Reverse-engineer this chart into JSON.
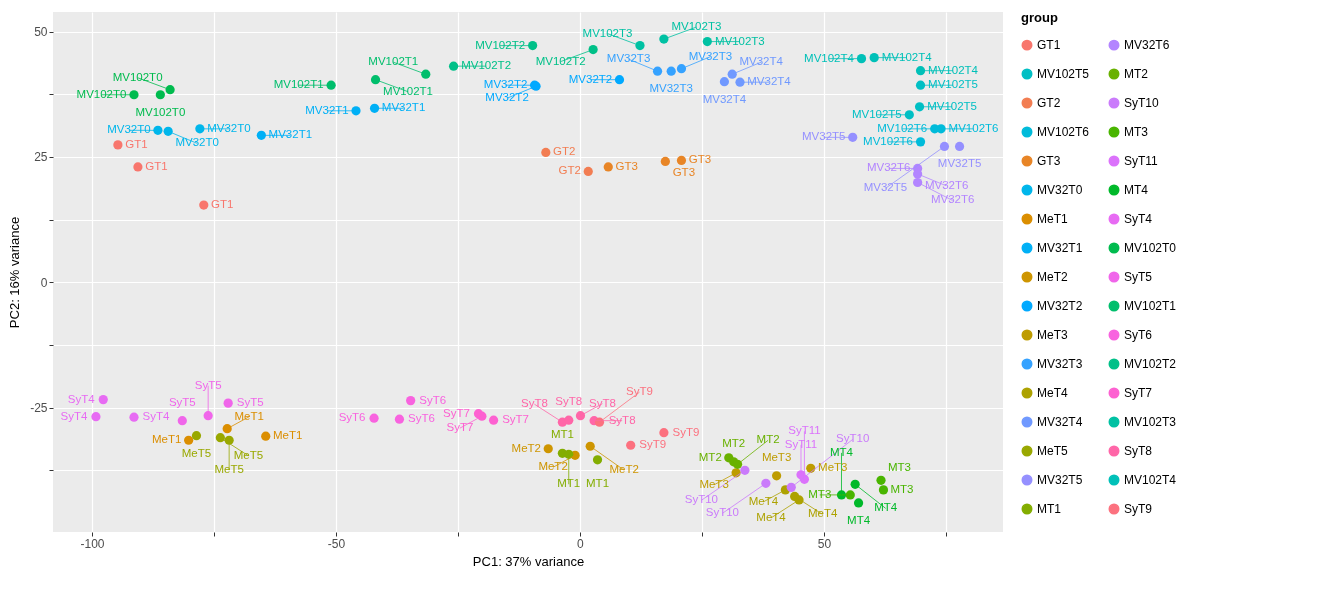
{
  "chart_data": {
    "type": "scatter",
    "xlabel": "PC1: 37% variance",
    "ylabel": "PC2: 16% variance",
    "legend_title": "group",
    "legend": "right",
    "grid": true,
    "marker": "circle",
    "xlim": [
      -108,
      86.7
    ],
    "ylim": [
      -49.8,
      53.9
    ],
    "xticks": [
      -100,
      {
        "value": -75,
        "label": null
      },
      -50,
      {
        "value": -25,
        "label": null
      },
      0,
      {
        "value": 25,
        "label": null
      },
      50,
      {
        "value": 75,
        "label": null
      }
    ],
    "yticks": [
      {
        "value": -37.5,
        "label": null
      },
      -25,
      {
        "value": -12.5,
        "label": null
      },
      0,
      {
        "value": 12.5,
        "label": null
      },
      25,
      {
        "value": 37.5,
        "label": null
      },
      50
    ],
    "series": [
      {
        "name": "GT1",
        "color": "#f8766d",
        "x": [
          -94.7,
          -90.6,
          -77.1
        ],
        "values": [
          27.4,
          23.0,
          15.4
        ]
      },
      {
        "name": "GT2",
        "color": "#f27d52",
        "x": [
          -7.0,
          1.7
        ],
        "values": [
          25.9,
          22.1
        ]
      },
      {
        "name": "GT3",
        "color": "#e88526",
        "x": [
          5.8,
          17.5,
          20.8
        ],
        "values": [
          23.0,
          24.1,
          24.3
        ]
      },
      {
        "name": "MeT1",
        "color": "#db8e00",
        "x": [
          -80.2,
          -72.3,
          -64.4
        ],
        "values": [
          -31.5,
          -29.2,
          -30.7
        ]
      },
      {
        "name": "MeT2",
        "color": "#ce9500",
        "x": [
          -6.5,
          2.1,
          -1.0
        ],
        "values": [
          -33.2,
          -32.7,
          -34.5
        ]
      },
      {
        "name": "MeT3",
        "color": "#be9c00",
        "x": [
          32.0,
          40.3,
          47.3
        ],
        "values": [
          -38.0,
          -38.6,
          -37.1
        ]
      },
      {
        "name": "MeT4",
        "color": "#ada200",
        "x": [
          42.1,
          44.0,
          44.9
        ],
        "values": [
          -41.4,
          -42.7,
          -43.4
        ]
      },
      {
        "name": "MeT5",
        "color": "#99a800",
        "x": [
          -78.6,
          -73.7,
          -71.9
        ],
        "values": [
          -30.6,
          -31.0,
          -31.5
        ]
      },
      {
        "name": "MT1",
        "color": "#83ad00",
        "x": [
          -3.6,
          -2.3,
          3.6
        ],
        "values": [
          -34.1,
          -34.3,
          -35.4
        ]
      },
      {
        "name": "MT2",
        "color": "#69b100",
        "x": [
          30.5,
          31.5,
          32.3
        ],
        "values": [
          -35.0,
          -35.8,
          -36.3
        ]
      },
      {
        "name": "MT3",
        "color": "#49b500",
        "x": [
          61.7,
          62.2,
          55.4
        ],
        "values": [
          -39.5,
          -41.4,
          -42.4
        ]
      },
      {
        "name": "MT4",
        "color": "#00b92a",
        "x": [
          56.4,
          53.6,
          57.1
        ],
        "values": [
          -40.3,
          -42.4,
          -44.0
        ]
      },
      {
        "name": "MV102T0",
        "color": "#00bb4e",
        "x": [
          -91.4,
          -86.0,
          -84.0
        ],
        "values": [
          37.4,
          37.4,
          38.4
        ]
      },
      {
        "name": "MV102T1",
        "color": "#00be6c",
        "x": [
          -51.0,
          -41.9,
          -31.6
        ],
        "values": [
          39.3,
          40.4,
          41.5
        ]
      },
      {
        "name": "MV102T2",
        "color": "#00c088",
        "x": [
          -25.9,
          -9.7,
          2.7
        ],
        "values": [
          43.1,
          47.2,
          46.4
        ]
      },
      {
        "name": "MV102T3",
        "color": "#00c1a3",
        "x": [
          12.3,
          17.2,
          26.1
        ],
        "values": [
          47.2,
          48.5,
          48.0
        ]
      },
      {
        "name": "MV102T4",
        "color": "#00c0b8",
        "x": [
          57.7,
          60.3,
          69.8
        ],
        "values": [
          44.6,
          44.8,
          42.2
        ]
      },
      {
        "name": "MV102T5",
        "color": "#00bfc4",
        "x": [
          69.8,
          69.6,
          67.5
        ],
        "values": [
          39.3,
          35.0,
          33.4
        ]
      },
      {
        "name": "MV102T6",
        "color": "#00bbda",
        "x": [
          72.7,
          74.0,
          69.8
        ],
        "values": [
          30.6,
          30.6,
          28.0
        ]
      },
      {
        "name": "MV32T0",
        "color": "#00b6eb",
        "x": [
          -86.5,
          -84.4,
          -77.9
        ],
        "values": [
          30.3,
          30.1,
          30.6
        ]
      },
      {
        "name": "MV32T1",
        "color": "#00b0f6",
        "x": [
          -65.3,
          -45.9,
          -42.1
        ],
        "values": [
          29.3,
          34.2,
          34.7
        ]
      },
      {
        "name": "MV32T2",
        "color": "#00a9ff",
        "x": [
          -9.0,
          -9.3,
          8.1
        ],
        "values": [
          39.1,
          39.3,
          40.4
        ]
      },
      {
        "name": "MV32T3",
        "color": "#35a2ff",
        "x": [
          15.9,
          18.7,
          20.8
        ],
        "values": [
          42.1,
          42.1,
          42.6
        ]
      },
      {
        "name": "MV32T4",
        "color": "#7099ff",
        "x": [
          29.6,
          31.2,
          32.8
        ],
        "values": [
          40.0,
          41.5,
          39.9
        ]
      },
      {
        "name": "MV32T5",
        "color": "#9590ff",
        "x": [
          55.9,
          74.7,
          77.8
        ],
        "values": [
          28.9,
          27.1,
          27.1
        ]
      },
      {
        "name": "MV32T6",
        "color": "#b385ff",
        "x": [
          69.2,
          69.2,
          69.2
        ],
        "values": [
          22.7,
          21.6,
          19.9
        ]
      },
      {
        "name": "SyT10",
        "color": "#ca7bfb",
        "x": [
          33.8,
          38.1,
          43.3
        ],
        "values": [
          -37.5,
          -40.1,
          -40.9
        ]
      },
      {
        "name": "SyT11",
        "color": "#db72fb",
        "x": [
          45.3,
          46.0
        ],
        "values": [
          -38.4,
          -39.3
        ]
      },
      {
        "name": "SyT4",
        "color": "#e76bf3",
        "x": [
          -97.7,
          -99.2,
          -91.4
        ],
        "values": [
          -23.4,
          -26.8,
          -26.9
        ]
      },
      {
        "name": "SyT5",
        "color": "#f066ea",
        "x": [
          -81.5,
          -76.2,
          -72.1
        ],
        "values": [
          -27.6,
          -26.6,
          -24.1
        ]
      },
      {
        "name": "SyT6",
        "color": "#f863df",
        "x": [
          -42.2,
          -37.0,
          -34.7
        ],
        "values": [
          -27.1,
          -27.3,
          -23.6
        ]
      },
      {
        "name": "SyT7",
        "color": "#fd61d1",
        "x": [
          -20.8,
          -20.1,
          -17.7
        ],
        "values": [
          -26.2,
          -26.7,
          -27.5
        ]
      },
      {
        "name": "SyT8",
        "color": "#ff66a8",
        "x": [
          -3.6,
          -2.3,
          0.1,
          2.9
        ],
        "values": [
          -27.9,
          -27.5,
          -26.6,
          -27.6
        ]
      },
      {
        "name": "SyT9",
        "color": "#fc717f",
        "x": [
          4.0,
          10.4,
          17.2
        ],
        "values": [
          -27.9,
          -32.5,
          -30.0
        ]
      }
    ]
  }
}
